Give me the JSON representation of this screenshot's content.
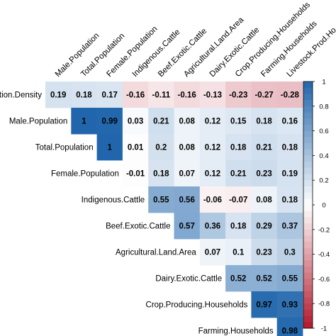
{
  "chart_data": {
    "type": "heatmap",
    "variables": [
      "Population.Density",
      "Male.Population",
      "Total.Population",
      "Female.Population",
      "Indigenous.Cattle",
      "Beef.Exotic.Cattle",
      "Agricultural.Land.Area",
      "Dairy.Exotic.Cattle",
      "Crop.Producing.Households",
      "Farming.Households",
      "Livestock.Prod.Households"
    ],
    "row_labels": [
      "tion.Density",
      "Male.Population",
      "Total.Population",
      "Female.Population",
      "Indigenous.Cattle",
      "Beef.Exotic.Cattle",
      "Agricultural.Land.Area",
      "Dairy.Exotic.Cattle",
      "Crop.Producing.Households",
      "Farming.Households"
    ],
    "column_labels": [
      "Male.Population",
      "Total.Population",
      "Female.Population",
      "Indigenous.Cattle",
      "Beef.Exotic.Cattle",
      "Agricultural.Land.Area",
      "Dairy.Exotic.Cattle",
      "Crop.Producing.Households",
      "Farming.Households",
      "Livestock.Prod.Ho"
    ],
    "matrix": [
      [
        0.19,
        0.18,
        0.17,
        -0.16,
        -0.11,
        -0.16,
        -0.13,
        -0.23,
        -0.27,
        -0.28
      ],
      [
        null,
        1,
        0.99,
        0.03,
        0.21,
        0.08,
        0.12,
        0.15,
        0.18,
        0.16
      ],
      [
        null,
        null,
        1,
        0.01,
        0.2,
        0.08,
        0.12,
        0.18,
        0.21,
        0.18
      ],
      [
        null,
        null,
        null,
        -0.01,
        0.18,
        0.07,
        0.12,
        0.21,
        0.23,
        0.19
      ],
      [
        null,
        null,
        null,
        null,
        0.55,
        0.56,
        -0.06,
        -0.07,
        0.08,
        0.18
      ],
      [
        null,
        null,
        null,
        null,
        null,
        0.57,
        0.36,
        0.18,
        0.29,
        0.37
      ],
      [
        null,
        null,
        null,
        null,
        null,
        null,
        0.07,
        0.1,
        0.23,
        0.3
      ],
      [
        null,
        null,
        null,
        null,
        null,
        null,
        null,
        0.52,
        0.52,
        0.55
      ],
      [
        null,
        null,
        null,
        null,
        null,
        null,
        null,
        null,
        0.97,
        0.93
      ],
      [
        null,
        null,
        null,
        null,
        null,
        null,
        null,
        null,
        null,
        0.98
      ]
    ],
    "colorbar": {
      "range": [
        -1,
        1
      ],
      "ticks": [
        "1",
        "0.8",
        "0.6",
        "0.4",
        "0.2",
        "0",
        "-0.2",
        "-0.4",
        "-0.6",
        "-0.8",
        "-1"
      ],
      "color_negative": "#B2182B",
      "color_zero": "#FFFFFF",
      "color_positive": "#2166AC"
    },
    "grid": false,
    "legend_position": "right"
  }
}
